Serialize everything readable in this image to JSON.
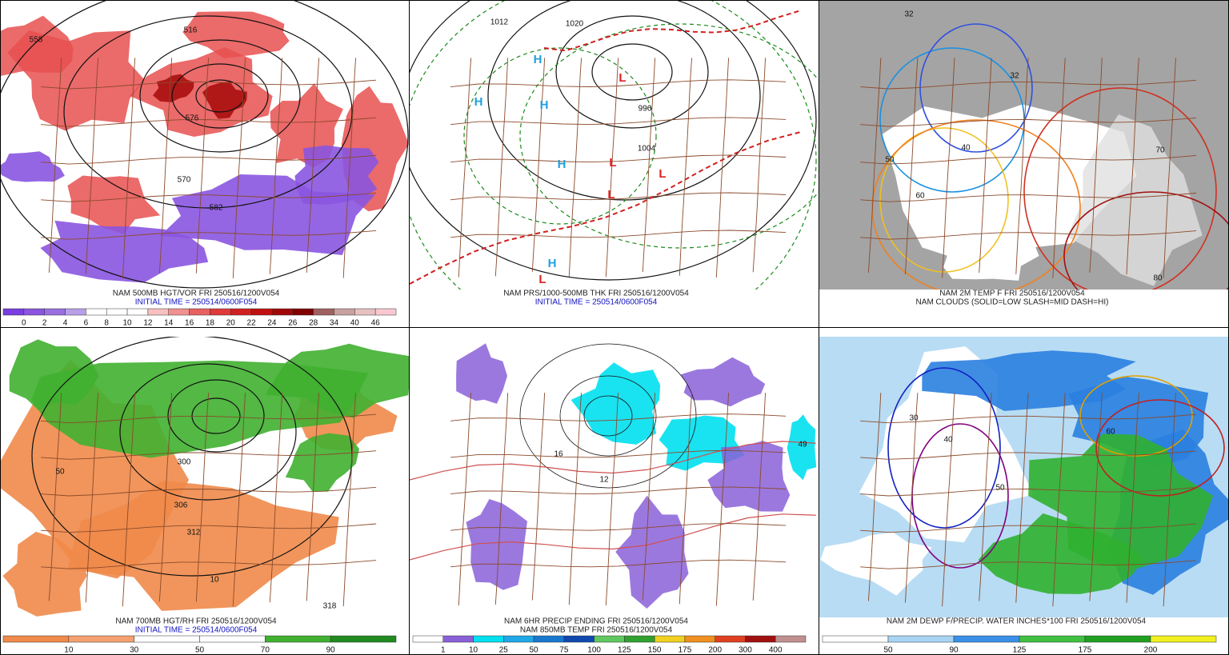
{
  "panels": [
    {
      "captions": [
        "NAM 500MB HGT/VOR FRI 250516/1200V054",
        "INITIAL TIME = 250514/0600F054"
      ],
      "colorbar": {
        "labels": [
          "0",
          "2",
          "4",
          "6",
          "8",
          "10",
          "12",
          "14",
          "16",
          "18",
          "20",
          "22",
          "24",
          "26",
          "28",
          "34",
          "40",
          "46"
        ],
        "colors": [
          "#7a3ee0",
          "#8a55e0",
          "#9a70e0",
          "#b8a0e8",
          "#ffffff",
          "#ffffff",
          "#ffffff",
          "#f8c0c0",
          "#f09090",
          "#e86060",
          "#e03a3a",
          "#d02020",
          "#c01010",
          "#a00808",
          "#800000",
          "#a06060",
          "#c8a0a0",
          "#e8c0c0",
          "#f8c8d0"
        ]
      },
      "map_labels": [
        "558",
        "516",
        "570",
        "582",
        "576"
      ]
    },
    {
      "captions": [
        "NAM PRS/1000-500MB THK FRI 250516/1200V054",
        "INITIAL TIME = 250514/0600F054"
      ],
      "map_labels": [
        "H",
        "H",
        "H",
        "H",
        "H",
        "L",
        "L",
        "L",
        "L",
        "L",
        "1012",
        "1020",
        "1004",
        "996"
      ]
    },
    {
      "captions": [
        "NAM 2M TEMP F FRI 250516/1200V054",
        "NAM CLOUDS (SOLID=LOW SLASH=MID DASH=HI)"
      ],
      "map_labels": [
        "32",
        "32",
        "40",
        "50",
        "60",
        "70",
        "80"
      ]
    },
    {
      "captions": [
        "NAM 700MB HGT/RH FRI 250516/1200V054",
        "INITIAL TIME = 250514/0600F054"
      ],
      "colorbar": {
        "labels": [
          "10",
          "30",
          "50",
          "70",
          "90"
        ],
        "colors": [
          "#f08a4a",
          "#f4a070",
          "#ffffff",
          "#ffffff",
          "#40b030",
          "#208a20"
        ]
      },
      "map_labels": [
        "300",
        "306",
        "312",
        "318",
        "50",
        "10"
      ]
    },
    {
      "captions": [
        "NAM 6HR PRECIP ENDING FRI 250516/1200V054",
        "NAM 850MB TEMP FRI 250516/1200V054"
      ],
      "colorbar": {
        "labels": [
          "1",
          "10",
          "25",
          "50",
          "75",
          "100",
          "125",
          "150",
          "175",
          "200",
          "300",
          "400"
        ],
        "colors": [
          "#ffffff",
          "#8a60d8",
          "#00e0f0",
          "#20a8e8",
          "#1878d0",
          "#1048b0",
          "#60c860",
          "#30a030",
          "#f0d020",
          "#f09020",
          "#e04020",
          "#a01010",
          "#c09090"
        ]
      },
      "map_labels": [
        "49",
        "16",
        "12"
      ]
    },
    {
      "captions": [
        "NAM 2M DEWP F/PRECIP. WATER INCHES*100 FRI 250516/1200V054"
      ],
      "colorbar": {
        "labels": [
          "50",
          "90",
          "125",
          "175",
          "200"
        ],
        "colors": [
          "#ffffff",
          "#a8d4f4",
          "#3a90e8",
          "#40c040",
          "#20a020",
          "#f0f020"
        ]
      },
      "map_labels": [
        "30",
        "40",
        "50",
        "60"
      ]
    }
  ]
}
